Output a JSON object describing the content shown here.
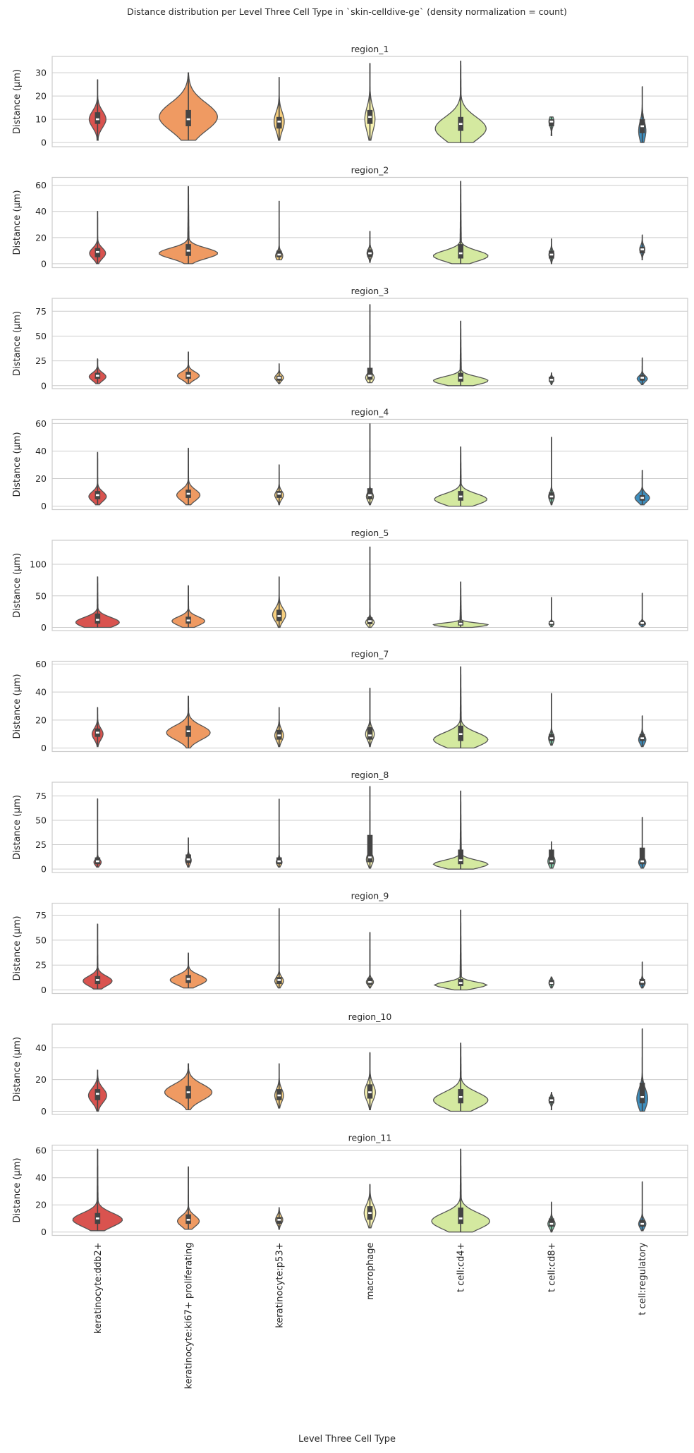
{
  "figure": {
    "title": "Distance distribution per Level Three Cell Type in `skin-celldive-ge` (density normalization = count)",
    "xlabel": "Level Three Cell Type"
  },
  "chart_data": {
    "type": "violin",
    "density_norm": "count",
    "ylabel": "Distance (µm)",
    "categories": [
      "keratinocyte:ddb2+",
      "keratinocyte:ki67+ proliferating",
      "keratinocyte:p53+",
      "macrophage",
      "t cell:cd4+",
      "t cell:cd8+",
      "t cell:regulatory"
    ],
    "colors": [
      "#d9534f",
      "#ef9a62",
      "#f6cf7f",
      "#f9f4b2",
      "#d4e9a0",
      "#7cc6a4",
      "#3e8fbf"
    ],
    "panels": [
      {
        "title": "region_1",
        "ylim": [
          -1.8,
          37
        ],
        "yticks": [
          0,
          10,
          20,
          30
        ],
        "violins": [
          {
            "min": 1,
            "max": 27,
            "q1": 8,
            "median": 10,
            "q3": 13,
            "peak": 10,
            "spread": 3.5,
            "width": 0.23
          },
          {
            "min": 1,
            "max": 30,
            "q1": 7,
            "median": 10,
            "q3": 14,
            "peak": 11,
            "spread": 6,
            "width": 0.8
          },
          {
            "min": 1,
            "max": 28,
            "q1": 6,
            "median": 9,
            "q3": 11,
            "peak": 9,
            "spread": 4,
            "width": 0.14
          },
          {
            "min": 1,
            "max": 34,
            "q1": 8,
            "median": 11,
            "q3": 14,
            "peak": 10,
            "spread": 5,
            "width": 0.14
          },
          {
            "min": 0,
            "max": 35,
            "q1": 5,
            "median": 8,
            "q3": 11,
            "peak": 6,
            "spread": 5,
            "width": 0.7
          },
          {
            "min": 3,
            "max": 11,
            "q1": 7,
            "median": 9,
            "q3": 10,
            "peak": 9,
            "spread": 2,
            "width": 0.07
          },
          {
            "min": 0,
            "max": 24,
            "q1": 4,
            "median": 7,
            "q3": 10,
            "peak": 5,
            "spread": 4,
            "width": 0.1
          }
        ]
      },
      {
        "title": "region_2",
        "ylim": [
          -3,
          66
        ],
        "yticks": [
          0,
          20,
          40,
          60
        ],
        "violins": [
          {
            "min": 0,
            "max": 40,
            "q1": 5,
            "median": 9,
            "q3": 12,
            "peak": 8,
            "spread": 4,
            "width": 0.22
          },
          {
            "min": 0,
            "max": 59,
            "q1": 6,
            "median": 10,
            "q3": 15,
            "peak": 8,
            "spread": 4,
            "width": 0.8
          },
          {
            "min": 3,
            "max": 48,
            "q1": 5,
            "median": 7,
            "q3": 10,
            "peak": 6,
            "spread": 3,
            "width": 0.1
          },
          {
            "min": 1,
            "max": 25,
            "q1": 5,
            "median": 8,
            "q3": 11,
            "peak": 8,
            "spread": 3,
            "width": 0.08
          },
          {
            "min": 0,
            "max": 63,
            "q1": 4,
            "median": 8,
            "q3": 15,
            "peak": 6,
            "spread": 4,
            "width": 0.75
          },
          {
            "min": 0,
            "max": 19,
            "q1": 4,
            "median": 7,
            "q3": 10,
            "peak": 7,
            "spread": 3,
            "width": 0.07
          },
          {
            "min": 3,
            "max": 22,
            "q1": 8,
            "median": 11,
            "q3": 13,
            "peak": 11,
            "spread": 3,
            "width": 0.07
          }
        ]
      },
      {
        "title": "region_3",
        "ylim": [
          -3,
          88
        ],
        "yticks": [
          0,
          25,
          50,
          75
        ],
        "violins": [
          {
            "min": 2,
            "max": 27,
            "q1": 7,
            "median": 10,
            "q3": 13,
            "peak": 9,
            "spread": 4,
            "width": 0.23
          },
          {
            "min": 2,
            "max": 34,
            "q1": 7,
            "median": 10,
            "q3": 14,
            "peak": 10,
            "spread": 4,
            "width": 0.3
          },
          {
            "min": 2,
            "max": 22,
            "q1": 5,
            "median": 8,
            "q3": 10,
            "peak": 8,
            "spread": 3,
            "width": 0.12
          },
          {
            "min": 3,
            "max": 82,
            "q1": 6,
            "median": 10,
            "q3": 18,
            "peak": 8,
            "spread": 4,
            "width": 0.12
          },
          {
            "min": 0,
            "max": 65,
            "q1": 4,
            "median": 8,
            "q3": 13,
            "peak": 5,
            "spread": 4,
            "width": 0.75
          },
          {
            "min": 1,
            "max": 13,
            "q1": 4,
            "median": 6,
            "q3": 9,
            "peak": 6,
            "spread": 2.5,
            "width": 0.06
          },
          {
            "min": 1,
            "max": 28,
            "q1": 5,
            "median": 8,
            "q3": 11,
            "peak": 7,
            "spread": 3,
            "width": 0.14
          }
        ]
      },
      {
        "title": "region_4",
        "ylim": [
          -2.5,
          63
        ],
        "yticks": [
          0,
          20,
          40,
          60
        ],
        "violins": [
          {
            "min": 1,
            "max": 39,
            "q1": 5,
            "median": 8,
            "q3": 11,
            "peak": 7,
            "spread": 3.5,
            "width": 0.24
          },
          {
            "min": 1,
            "max": 42,
            "q1": 6,
            "median": 9,
            "q3": 12,
            "peak": 8,
            "spread": 4,
            "width": 0.32
          },
          {
            "min": 1,
            "max": 30,
            "q1": 6,
            "median": 9,
            "q3": 11,
            "peak": 8,
            "spread": 3,
            "width": 0.12
          },
          {
            "min": 1,
            "max": 60,
            "q1": 5,
            "median": 8,
            "q3": 13,
            "peak": 7,
            "spread": 3,
            "width": 0.1
          },
          {
            "min": 0,
            "max": 43,
            "q1": 4,
            "median": 7,
            "q3": 11,
            "peak": 5,
            "spread": 4,
            "width": 0.72
          },
          {
            "min": 1,
            "max": 50,
            "q1": 5,
            "median": 7,
            "q3": 10,
            "peak": 7,
            "spread": 3,
            "width": 0.08
          },
          {
            "min": 1,
            "max": 26,
            "q1": 4,
            "median": 6,
            "q3": 8,
            "peak": 6,
            "spread": 3,
            "width": 0.2
          }
        ]
      },
      {
        "title": "region_5",
        "ylim": [
          -5,
          138
        ],
        "yticks": [
          0,
          50,
          100
        ],
        "violins": [
          {
            "min": 0,
            "max": 80,
            "q1": 6,
            "median": 12,
            "q3": 22,
            "peak": 8,
            "spread": 8,
            "width": 0.6
          },
          {
            "min": 0,
            "max": 66,
            "q1": 6,
            "median": 11,
            "q3": 17,
            "peak": 10,
            "spread": 7,
            "width": 0.45
          },
          {
            "min": 0,
            "max": 80,
            "q1": 10,
            "median": 18,
            "q3": 28,
            "peak": 20,
            "spread": 10,
            "width": 0.18
          },
          {
            "min": 0,
            "max": 128,
            "q1": 5,
            "median": 10,
            "q3": 16,
            "peak": 8,
            "spread": 5,
            "width": 0.12
          },
          {
            "min": 0,
            "max": 72,
            "q1": 3,
            "median": 6,
            "q3": 10,
            "peak": 4,
            "spread": 3,
            "width": 0.75
          },
          {
            "min": 1,
            "max": 48,
            "q1": 4,
            "median": 7,
            "q3": 10,
            "peak": 6,
            "spread": 3,
            "width": 0.07
          },
          {
            "min": 1,
            "max": 54,
            "q1": 4,
            "median": 7,
            "q3": 10,
            "peak": 6,
            "spread": 3,
            "width": 0.09
          }
        ]
      },
      {
        "title": "region_7",
        "ylim": [
          -2.5,
          62
        ],
        "yticks": [
          0,
          20,
          40,
          60
        ],
        "violins": [
          {
            "min": 1,
            "max": 29,
            "q1": 8,
            "median": 11,
            "q3": 14,
            "peak": 10,
            "spread": 4,
            "width": 0.15
          },
          {
            "min": 0,
            "max": 37,
            "q1": 8,
            "median": 12,
            "q3": 16,
            "peak": 11,
            "spread": 5,
            "width": 0.6
          },
          {
            "min": 1,
            "max": 29,
            "q1": 6,
            "median": 9,
            "q3": 13,
            "peak": 9,
            "spread": 4,
            "width": 0.12
          },
          {
            "min": 1,
            "max": 43,
            "q1": 6,
            "median": 9,
            "q3": 15,
            "peak": 10,
            "spread": 4,
            "width": 0.12
          },
          {
            "min": 0,
            "max": 58,
            "q1": 5,
            "median": 10,
            "q3": 16,
            "peak": 6,
            "spread": 5,
            "width": 0.75
          },
          {
            "min": 2,
            "max": 39,
            "q1": 5,
            "median": 7,
            "q3": 10,
            "peak": 7,
            "spread": 3,
            "width": 0.08
          },
          {
            "min": 1,
            "max": 23,
            "q1": 5,
            "median": 7,
            "q3": 10,
            "peak": 6,
            "spread": 3,
            "width": 0.1
          }
        ]
      },
      {
        "title": "region_8",
        "ylim": [
          -3.5,
          89
        ],
        "yticks": [
          0,
          25,
          50,
          75
        ],
        "violins": [
          {
            "min": 2,
            "max": 72,
            "q1": 5,
            "median": 8,
            "q3": 12,
            "peak": 7,
            "spread": 3,
            "width": 0.1
          },
          {
            "min": 2,
            "max": 32,
            "q1": 6,
            "median": 10,
            "q3": 15,
            "peak": 9,
            "spread": 4,
            "width": 0.08
          },
          {
            "min": 2,
            "max": 72,
            "q1": 5,
            "median": 8,
            "q3": 12,
            "peak": 7,
            "spread": 3,
            "width": 0.08
          },
          {
            "min": 1,
            "max": 85,
            "q1": 7,
            "median": 12,
            "q3": 35,
            "peak": 10,
            "spread": 5,
            "width": 0.1
          },
          {
            "min": 0,
            "max": 80,
            "q1": 5,
            "median": 9,
            "q3": 20,
            "peak": 5,
            "spread": 4,
            "width": 0.75
          },
          {
            "min": 1,
            "max": 28,
            "q1": 5,
            "median": 8,
            "q3": 20,
            "peak": 8,
            "spread": 5,
            "width": 0.1
          },
          {
            "min": 1,
            "max": 53,
            "q1": 5,
            "median": 8,
            "q3": 22,
            "peak": 7,
            "spread": 4,
            "width": 0.1
          }
        ]
      },
      {
        "title": "region_9",
        "ylim": [
          -3.5,
          87
        ],
        "yticks": [
          0,
          25,
          50,
          75
        ],
        "violins": [
          {
            "min": 1,
            "max": 66,
            "q1": 6,
            "median": 10,
            "q3": 14,
            "peak": 9,
            "spread": 5,
            "width": 0.4
          },
          {
            "min": 2,
            "max": 37,
            "q1": 7,
            "median": 11,
            "q3": 15,
            "peak": 10,
            "spread": 5,
            "width": 0.5
          },
          {
            "min": 2,
            "max": 82,
            "q1": 6,
            "median": 10,
            "q3": 13,
            "peak": 9,
            "spread": 4,
            "width": 0.12
          },
          {
            "min": 2,
            "max": 58,
            "q1": 5,
            "median": 8,
            "q3": 12,
            "peak": 8,
            "spread": 3,
            "width": 0.1
          },
          {
            "min": 0,
            "max": 80,
            "q1": 4,
            "median": 7,
            "q3": 11,
            "peak": 5,
            "spread": 3,
            "width": 0.72
          },
          {
            "min": 2,
            "max": 13,
            "q1": 5,
            "median": 7,
            "q3": 10,
            "peak": 7,
            "spread": 3,
            "width": 0.07
          },
          {
            "min": 2,
            "max": 28,
            "q1": 5,
            "median": 8,
            "q3": 11,
            "peak": 7,
            "spread": 3,
            "width": 0.08
          }
        ]
      },
      {
        "title": "region_10",
        "ylim": [
          -2,
          55
        ],
        "yticks": [
          0,
          20,
          40
        ],
        "violins": [
          {
            "min": 0,
            "max": 26,
            "q1": 7,
            "median": 11,
            "q3": 14,
            "peak": 10,
            "spread": 4.5,
            "width": 0.25
          },
          {
            "min": 1,
            "max": 30,
            "q1": 8,
            "median": 12,
            "q3": 16,
            "peak": 12,
            "spread": 5,
            "width": 0.65
          },
          {
            "min": 2,
            "max": 30,
            "q1": 7,
            "median": 10,
            "q3": 14,
            "peak": 10,
            "spread": 4,
            "width": 0.12
          },
          {
            "min": 1,
            "max": 37,
            "q1": 8,
            "median": 12,
            "q3": 17,
            "peak": 12,
            "spread": 5,
            "width": 0.15
          },
          {
            "min": 0,
            "max": 43,
            "q1": 5,
            "median": 9,
            "q3": 14,
            "peak": 7,
            "spread": 5,
            "width": 0.75
          },
          {
            "min": 1,
            "max": 12,
            "q1": 5,
            "median": 7,
            "q3": 9,
            "peak": 7,
            "spread": 2,
            "width": 0.07
          },
          {
            "min": 0,
            "max": 52,
            "q1": 5,
            "median": 9,
            "q3": 18,
            "peak": 8,
            "spread": 6,
            "width": 0.15
          }
        ]
      },
      {
        "title": "region_11",
        "ylim": [
          -2.5,
          64
        ],
        "yticks": [
          0,
          20,
          40,
          60
        ],
        "violins": [
          {
            "min": 1,
            "max": 61,
            "q1": 6,
            "median": 10,
            "q3": 14,
            "peak": 9,
            "spread": 5,
            "width": 0.68
          },
          {
            "min": 2,
            "max": 48,
            "q1": 6,
            "median": 9,
            "q3": 13,
            "peak": 8,
            "spread": 4,
            "width": 0.3
          },
          {
            "min": 2,
            "max": 18,
            "q1": 6,
            "median": 9,
            "q3": 11,
            "peak": 9,
            "spread": 3,
            "width": 0.1
          },
          {
            "min": 3,
            "max": 35,
            "q1": 9,
            "median": 14,
            "q3": 19,
            "peak": 14,
            "spread": 6,
            "width": 0.16
          },
          {
            "min": 0,
            "max": 61,
            "q1": 6,
            "median": 10,
            "q3": 18,
            "peak": 8,
            "spread": 6,
            "width": 0.8
          },
          {
            "min": 0,
            "max": 22,
            "q1": 4,
            "median": 6,
            "q3": 10,
            "peak": 6,
            "spread": 3,
            "width": 0.1
          },
          {
            "min": 1,
            "max": 37,
            "q1": 4,
            "median": 6,
            "q3": 9,
            "peak": 6,
            "spread": 3,
            "width": 0.1
          }
        ]
      }
    ]
  }
}
